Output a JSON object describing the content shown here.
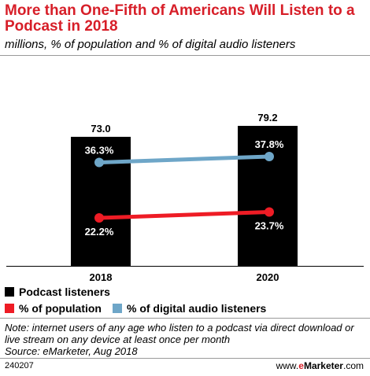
{
  "title": "More than One-Fifth of Americans Will Listen to a Podcast in 2018",
  "subtitle": "millions, % of population and % of digital audio listeners",
  "note": "Note: internet users of any age who listen to a podcast via direct download or live stream on any device at least once per month",
  "source": "Source: eMarketer, Aug 2018",
  "chart_id": "240207",
  "brand": {
    "prefix": "www.",
    "e": "e",
    "name": "Marketer",
    "suffix": ".com"
  },
  "colors": {
    "bars": "#000000",
    "population": "#ee1c25",
    "digital": "#6ea6c8",
    "accent": "#d71e28"
  },
  "chart_data": {
    "type": "bar",
    "categories": [
      "2018",
      "2020"
    ],
    "series": [
      {
        "name": "Podcast listeners",
        "type": "bar",
        "values": [
          73.0,
          79.2
        ],
        "labels": [
          "73.0",
          "79.2"
        ]
      },
      {
        "name": "% of population",
        "type": "line",
        "values": [
          22.2,
          23.7
        ],
        "labels": [
          "22.2%",
          "23.7%"
        ]
      },
      {
        "name": "% of digital audio listeners",
        "type": "line",
        "values": [
          36.3,
          37.8
        ],
        "labels": [
          "36.3%",
          "37.8%"
        ]
      }
    ],
    "legend_position": "bottom-left",
    "grid": false
  }
}
